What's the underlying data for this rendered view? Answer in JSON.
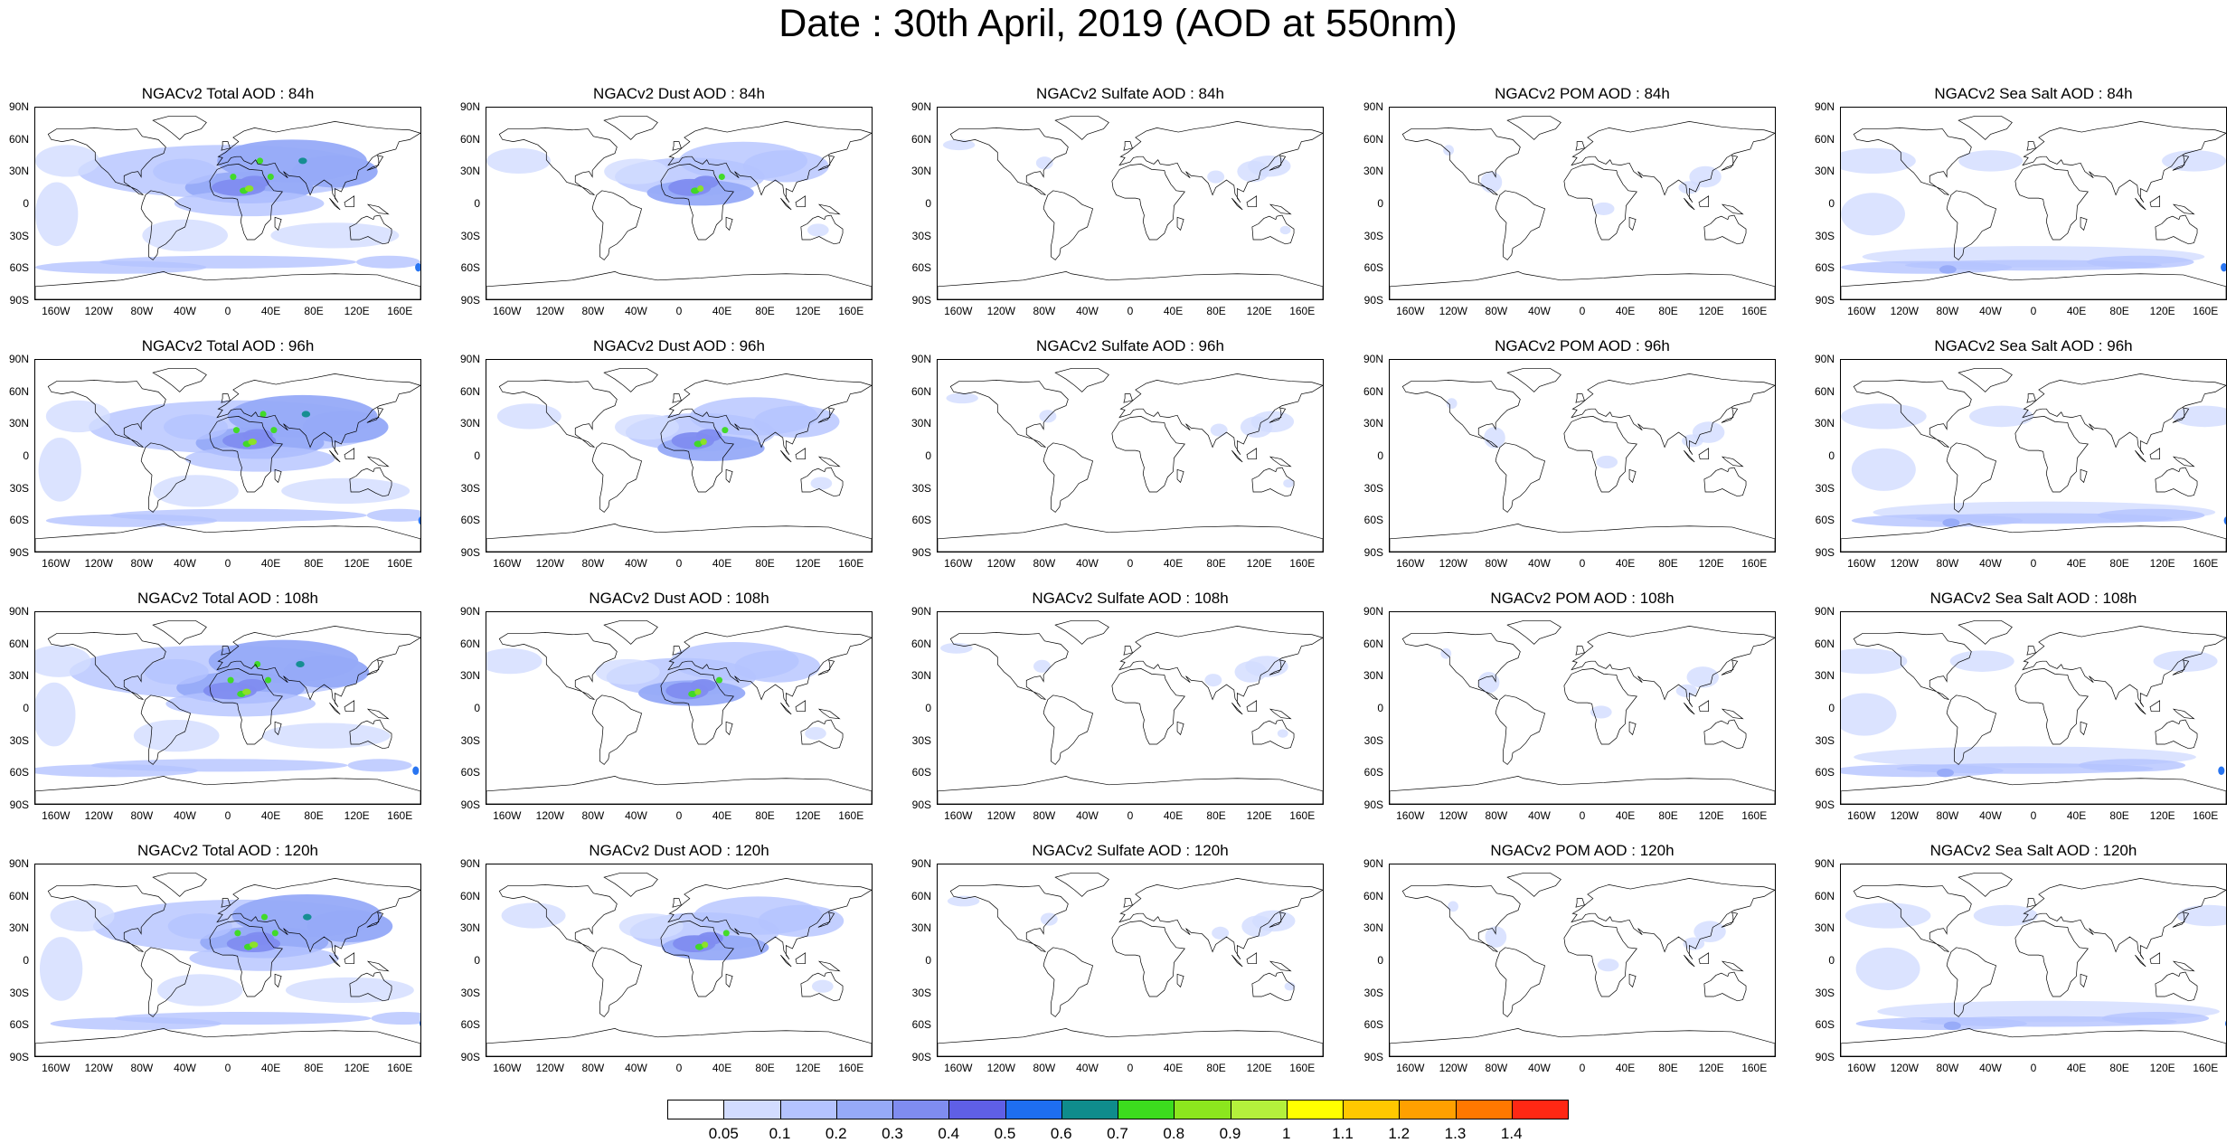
{
  "title": "Date : 30th April, 2019 (AOD at 550nm)",
  "lat_ticks": [
    "90N",
    "60N",
    "30N",
    "0",
    "30S",
    "60S",
    "90S"
  ],
  "lon_ticks": [
    "160W",
    "120W",
    "80W",
    "40W",
    "0",
    "40E",
    "80E",
    "120E",
    "160E"
  ],
  "lon_tick_degrees": [
    -160,
    -120,
    -80,
    -40,
    0,
    40,
    80,
    120,
    160
  ],
  "panels": [
    {
      "title": "NGACv2 Total AOD : 84h",
      "species": "total"
    },
    {
      "title": "NGACv2 Dust AOD : 84h",
      "species": "dust"
    },
    {
      "title": "NGACv2 Sulfate AOD : 84h",
      "species": "sulfate"
    },
    {
      "title": "NGACv2 POM AOD : 84h",
      "species": "pom"
    },
    {
      "title": "NGACv2 Sea Salt AOD : 84h",
      "species": "seasalt"
    },
    {
      "title": "NGACv2 Total AOD : 96h",
      "species": "total"
    },
    {
      "title": "NGACv2 Dust AOD : 96h",
      "species": "dust"
    },
    {
      "title": "NGACv2 Sulfate AOD : 96h",
      "species": "sulfate"
    },
    {
      "title": "NGACv2 POM AOD : 96h",
      "species": "pom"
    },
    {
      "title": "NGACv2 Sea Salt AOD : 96h",
      "species": "seasalt"
    },
    {
      "title": "NGACv2 Total AOD : 108h",
      "species": "total"
    },
    {
      "title": "NGACv2 Dust AOD : 108h",
      "species": "dust"
    },
    {
      "title": "NGACv2 Sulfate AOD : 108h",
      "species": "sulfate"
    },
    {
      "title": "NGACv2 POM AOD : 108h",
      "species": "pom"
    },
    {
      "title": "NGACv2 Sea Salt AOD : 108h",
      "species": "seasalt"
    },
    {
      "title": "NGACv2 Total AOD : 120h",
      "species": "total"
    },
    {
      "title": "NGACv2 Dust AOD : 120h",
      "species": "dust"
    },
    {
      "title": "NGACv2 Sulfate AOD : 120h",
      "species": "sulfate"
    },
    {
      "title": "NGACv2 POM AOD : 120h",
      "species": "pom"
    },
    {
      "title": "NGACv2 Sea Salt  AOD : 120h",
      "species": "seasalt"
    }
  ],
  "colorbar": {
    "labels": [
      "0.05",
      "0.1",
      "0.2",
      "0.3",
      "0.4",
      "0.5",
      "0.6",
      "0.7",
      "0.8",
      "0.9",
      "1",
      "1.1",
      "1.2",
      "1.3",
      "1.4"
    ],
    "colors": [
      "#ffffff",
      "#d2dcff",
      "#b4c3ff",
      "#96aaf8",
      "#7f8cf0",
      "#5f5fe6",
      "#1e6ef0",
      "#0f8c8c",
      "#3cdc1e",
      "#8ce61e",
      "#b4f03c",
      "#ffff00",
      "#ffc800",
      "#ffa000",
      "#ff7800",
      "#ff2814"
    ]
  }
}
